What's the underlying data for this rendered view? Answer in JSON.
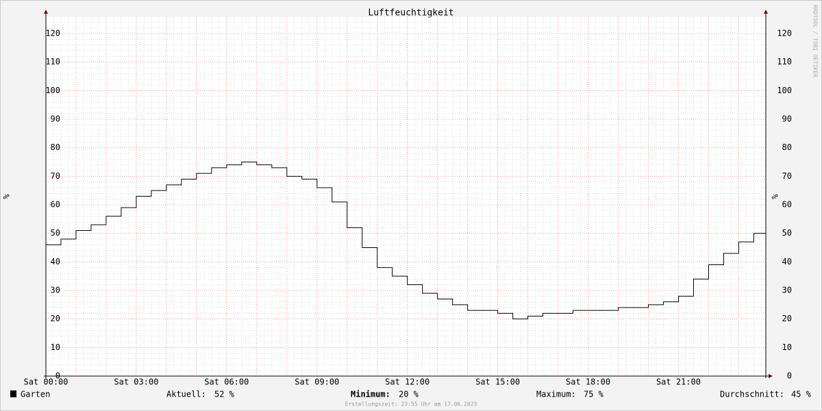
{
  "chart_data": {
    "type": "line",
    "title": "Luftfeuchtigkeit",
    "ylabel": "%",
    "watermark": "RRDTOOL / TOBI OETIKER",
    "x": [
      0,
      0.5,
      1,
      1.5,
      2,
      2.5,
      3,
      3.5,
      4,
      4.5,
      5,
      5.5,
      6,
      6.5,
      7,
      7.5,
      8,
      8.5,
      9,
      9.5,
      10,
      10.5,
      11,
      11.5,
      12,
      12.5,
      13,
      13.5,
      14,
      14.5,
      15,
      15.5,
      16,
      16.5,
      17,
      17.5,
      18,
      18.5,
      19,
      19.5,
      20,
      20.5,
      21,
      21.5,
      22,
      22.5,
      23,
      23.5,
      23.9
    ],
    "series": [
      {
        "name": "Garten",
        "color": "#000000",
        "values": [
          46,
          48,
          51,
          53,
          56,
          59,
          63,
          65,
          67,
          69,
          71,
          73,
          74,
          75,
          74,
          73,
          70,
          69,
          66,
          61,
          52,
          45,
          38,
          35,
          32,
          29,
          27,
          25,
          23,
          23,
          22,
          20,
          21,
          22,
          22,
          23,
          23,
          23,
          24,
          24,
          25,
          26,
          28,
          34,
          39,
          43,
          47,
          50,
          52
        ]
      }
    ],
    "xlim": [
      0,
      23.9
    ],
    "xticks": [
      {
        "value": 0,
        "label": "Sat 00:00"
      },
      {
        "value": 3,
        "label": "Sat 03:00"
      },
      {
        "value": 6,
        "label": "Sat 06:00"
      },
      {
        "value": 9,
        "label": "Sat 09:00"
      },
      {
        "value": 12,
        "label": "Sat 12:00"
      },
      {
        "value": 15,
        "label": "Sat 15:00"
      },
      {
        "value": 18,
        "label": "Sat 18:00"
      },
      {
        "value": 21,
        "label": "Sat 21:00"
      }
    ],
    "ylim": [
      0,
      126
    ],
    "yticks": [
      0,
      10,
      20,
      30,
      40,
      50,
      60,
      70,
      80,
      90,
      100,
      110,
      120
    ],
    "grid": true,
    "stats": [
      {
        "label": "Aktuell:",
        "value": "52 %"
      },
      {
        "label": "Minimum:",
        "value": "20 %"
      },
      {
        "label": "Maximum:",
        "value": "75 %"
      },
      {
        "label": "Durchschnitt:",
        "value": "45 %"
      }
    ],
    "footer": "Erstellungszeit: 23:55 Uhr am 17.06.2023"
  }
}
